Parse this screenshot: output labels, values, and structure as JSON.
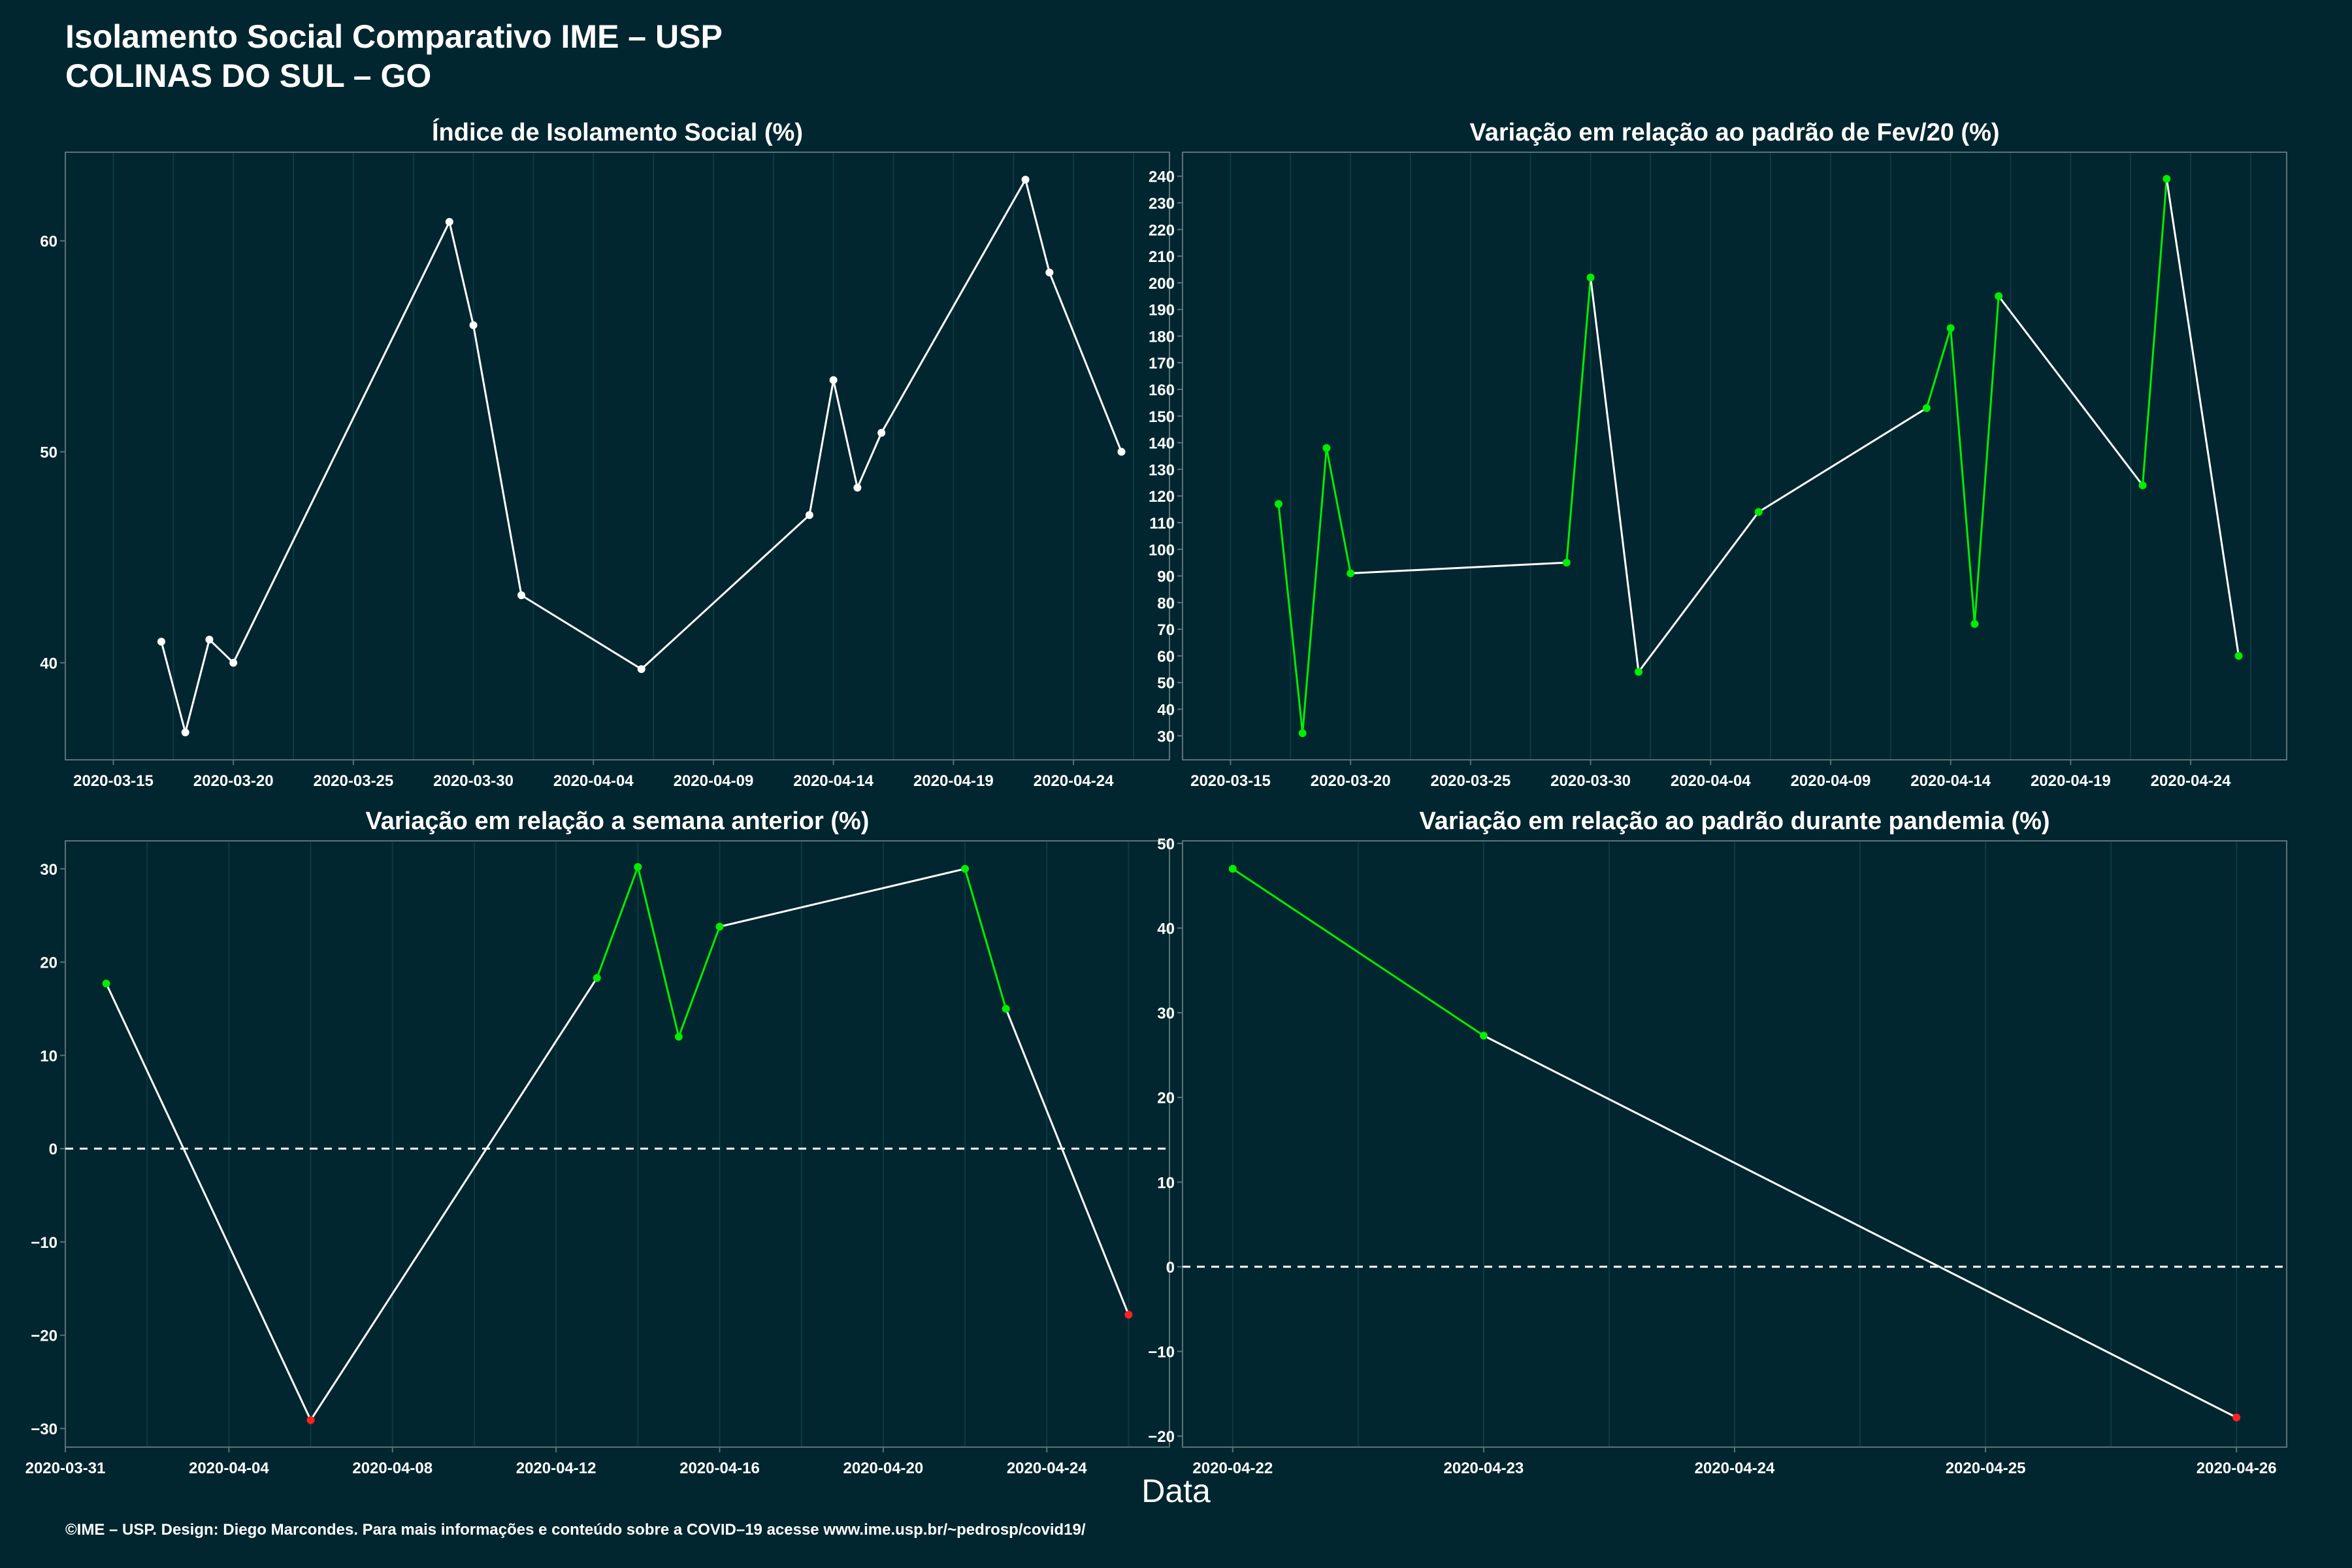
{
  "title_line1": "Isolamento Social Comparativo IME – USP",
  "title_line2": "COLINAS DO SUL – GO",
  "xlabel": "Data",
  "footer": "©IME – USP. Design: Diego Marcondes. Para mais informações e conteúdo sobre a COVID–19 acesse www.ime.usp.br/~pedrosp/covid19/",
  "colors": {
    "background": "#02262f",
    "line_neutral": "#ffffff",
    "positive": "#00ee00",
    "negative": "#ff2020",
    "grid": "#0d3a44"
  },
  "chart_data": [
    {
      "id": "isolamento",
      "type": "line",
      "title": "Índice de Isolamento Social (%)",
      "x_ticks": [
        "2020-03-15",
        "2020-03-20",
        "2020-03-25",
        "2020-03-30",
        "2020-04-04",
        "2020-04-09",
        "2020-04-14",
        "2020-04-19",
        "2020-04-24"
      ],
      "y_ticks": [
        40,
        50,
        60
      ],
      "xlim": [
        "2020-03-13",
        "2020-04-28"
      ],
      "ylim": [
        35.4,
        64.2
      ],
      "points": [
        {
          "x": "2020-03-17",
          "y": 41.0
        },
        {
          "x": "2020-03-18",
          "y": 36.7
        },
        {
          "x": "2020-03-19",
          "y": 41.1
        },
        {
          "x": "2020-03-20",
          "y": 40.0
        },
        {
          "x": "2020-03-29",
          "y": 60.9
        },
        {
          "x": "2020-03-30",
          "y": 56.0
        },
        {
          "x": "2020-04-01",
          "y": 43.2
        },
        {
          "x": "2020-04-06",
          "y": 39.7
        },
        {
          "x": "2020-04-13",
          "y": 47.0
        },
        {
          "x": "2020-04-14",
          "y": 53.4
        },
        {
          "x": "2020-04-15",
          "y": 48.3
        },
        {
          "x": "2020-04-16",
          "y": 50.9
        },
        {
          "x": "2020-04-22",
          "y": 62.9
        },
        {
          "x": "2020-04-23",
          "y": 58.5
        },
        {
          "x": "2020-04-26",
          "y": 50.0
        }
      ]
    },
    {
      "id": "fev20",
      "type": "line",
      "title": "Variação em relação ao padrão de Fev/20 (%)",
      "x_ticks": [
        "2020-03-15",
        "2020-03-20",
        "2020-03-25",
        "2020-03-30",
        "2020-04-04",
        "2020-04-09",
        "2020-04-14",
        "2020-04-19",
        "2020-04-24"
      ],
      "y_ticks": [
        30,
        40,
        50,
        60,
        70,
        80,
        90,
        100,
        110,
        120,
        130,
        140,
        150,
        160,
        170,
        180,
        190,
        200,
        210,
        220,
        230,
        240
      ],
      "xlim": [
        "2020-03-13",
        "2020-04-28"
      ],
      "ylim": [
        21,
        249
      ],
      "points": [
        {
          "x": "2020-03-17",
          "y": 117
        },
        {
          "x": "2020-03-18",
          "y": 31
        },
        {
          "x": "2020-03-19",
          "y": 138
        },
        {
          "x": "2020-03-20",
          "y": 91
        },
        {
          "x": "2020-03-29",
          "y": 95
        },
        {
          "x": "2020-03-30",
          "y": 202
        },
        {
          "x": "2020-04-01",
          "y": 54
        },
        {
          "x": "2020-04-06",
          "y": 114
        },
        {
          "x": "2020-04-13",
          "y": 153
        },
        {
          "x": "2020-04-14",
          "y": 183
        },
        {
          "x": "2020-04-15",
          "y": 72
        },
        {
          "x": "2020-04-16",
          "y": 195
        },
        {
          "x": "2020-04-22",
          "y": 124
        },
        {
          "x": "2020-04-23",
          "y": 239
        },
        {
          "x": "2020-04-26",
          "y": 60
        }
      ]
    },
    {
      "id": "semana",
      "type": "line",
      "title": "Variação em relação a semana anterior (%)",
      "x_ticks": [
        "2020-03-31",
        "2020-04-04",
        "2020-04-08",
        "2020-04-12",
        "2020-04-16",
        "2020-04-20",
        "2020-04-24"
      ],
      "y_ticks": [
        -30,
        -20,
        -10,
        0,
        10,
        20,
        30
      ],
      "xlim": [
        "2020-03-31",
        "2020-04-27"
      ],
      "ylim": [
        -32,
        33
      ],
      "zero_line": true,
      "points": [
        {
          "x": "2020-04-01",
          "y": 17.7
        },
        {
          "x": "2020-04-06",
          "y": -29.1
        },
        {
          "x": "2020-04-13",
          "y": 18.3
        },
        {
          "x": "2020-04-14",
          "y": 30.2
        },
        {
          "x": "2020-04-15",
          "y": 12.0
        },
        {
          "x": "2020-04-16",
          "y": 23.8
        },
        {
          "x": "2020-04-22",
          "y": 30.0
        },
        {
          "x": "2020-04-23",
          "y": 15.0
        },
        {
          "x": "2020-04-26",
          "y": -17.8
        }
      ]
    },
    {
      "id": "pandemia",
      "type": "line",
      "title": "Variação em relação ao padrão durante pandemia (%)",
      "x_ticks": [
        "2020-04-22",
        "2020-04-23",
        "2020-04-24",
        "2020-04-25",
        "2020-04-26"
      ],
      "y_ticks": [
        -20,
        -10,
        0,
        10,
        20,
        30,
        40,
        50
      ],
      "xlim": [
        "2020-04-21.8",
        "2020-04-26.2"
      ],
      "ylim": [
        -21.3,
        50.3
      ],
      "zero_line": true,
      "points": [
        {
          "x": "2020-04-22",
          "y": 47.0
        },
        {
          "x": "2020-04-23",
          "y": 27.3
        },
        {
          "x": "2020-04-26",
          "y": -17.8
        }
      ]
    }
  ]
}
